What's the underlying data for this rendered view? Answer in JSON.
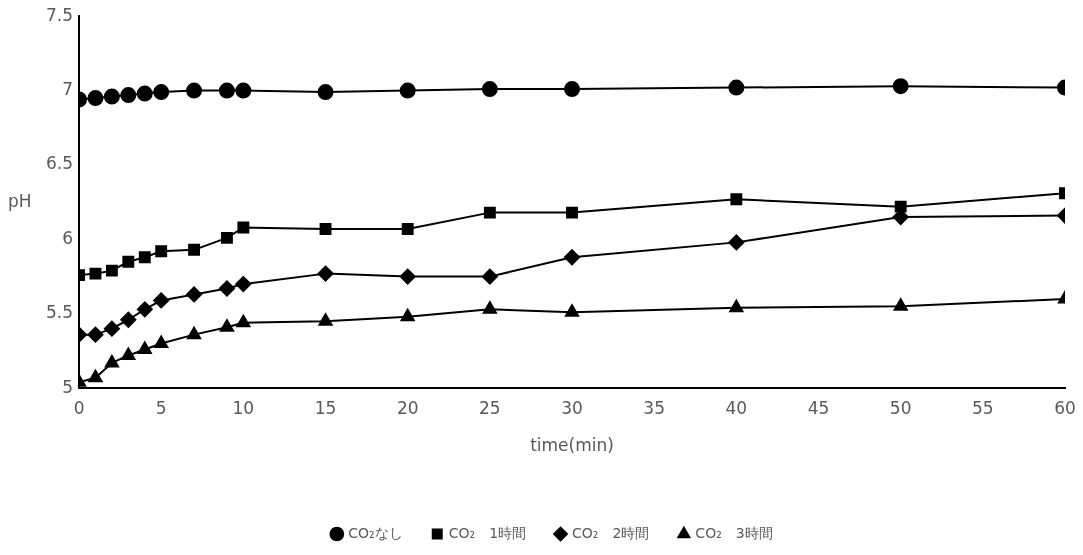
{
  "chart_data": {
    "type": "line",
    "xlabel": "time(min)",
    "ylabel": "pH",
    "x": [
      0,
      1,
      2,
      3,
      4,
      5,
      7,
      9,
      10,
      15,
      20,
      25,
      30,
      40,
      50,
      60
    ],
    "series": [
      {
        "name": "CO₂なし",
        "color": "#000000",
        "marker": "circle",
        "values": [
          6.94,
          6.95,
          6.96,
          6.97,
          6.98,
          6.99,
          7.0,
          7.0,
          7.0,
          6.99,
          7.0,
          7.01,
          7.01,
          7.02,
          7.03,
          7.02
        ]
      },
      {
        "name": "CO₂　1時間",
        "color": "#000000",
        "marker": "square",
        "values": [
          5.76,
          5.77,
          5.79,
          5.85,
          5.88,
          5.92,
          5.93,
          6.01,
          6.08,
          6.07,
          6.07,
          6.18,
          6.18,
          6.27,
          6.22,
          6.31
        ]
      },
      {
        "name": "CO₂　2時間",
        "color": "#000000",
        "marker": "diamond",
        "values": [
          5.36,
          5.36,
          5.4,
          5.46,
          5.53,
          5.59,
          5.63,
          5.67,
          5.7,
          5.77,
          5.75,
          5.75,
          5.88,
          5.98,
          6.15,
          6.16
        ]
      },
      {
        "name": "CO₂　3時間",
        "color": "#000000",
        "marker": "triangle",
        "values": [
          5.04,
          5.07,
          5.17,
          5.22,
          5.26,
          5.3,
          5.36,
          5.41,
          5.44,
          5.45,
          5.48,
          5.53,
          5.51,
          5.54,
          5.55,
          5.6
        ]
      }
    ],
    "xlim": [
      0,
      60
    ],
    "xticks": [
      0,
      5,
      10,
      15,
      20,
      25,
      30,
      35,
      40,
      45,
      50,
      55,
      60
    ],
    "ylim": [
      5,
      7.5
    ],
    "yticks": [
      5,
      5.5,
      6,
      6.5,
      7,
      7.5
    ],
    "grid": false,
    "legend": "bottom",
    "line_style": "solid"
  }
}
